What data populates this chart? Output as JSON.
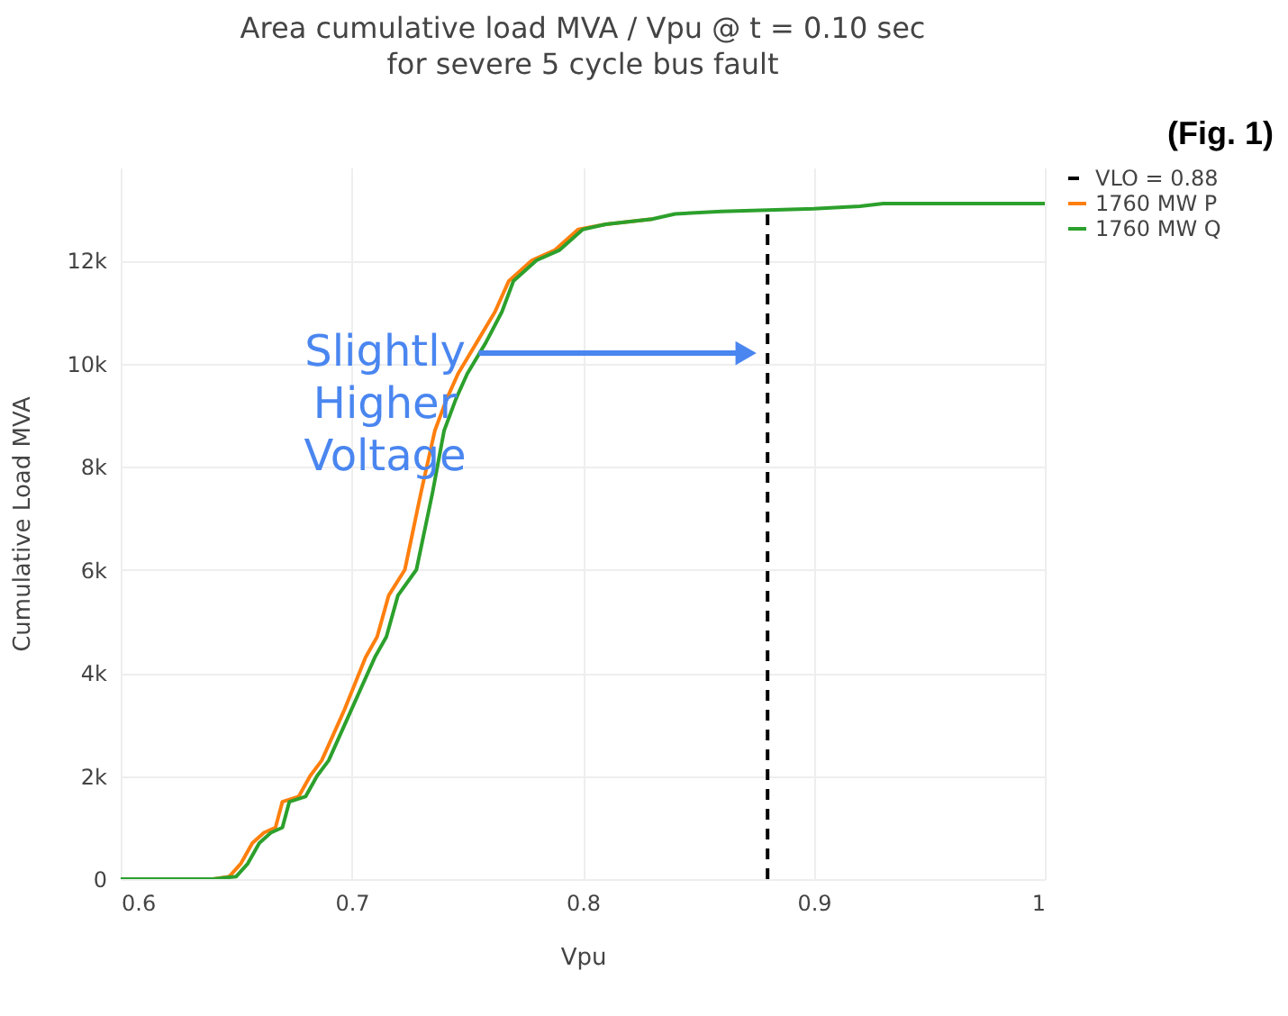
{
  "chart_data": {
    "type": "line",
    "title": "Area cumulative load MVA / Vpu @ t = 0.10 sec",
    "subtitle": "for severe 5 cycle bus fault",
    "xlabel": "Vpu",
    "ylabel": "Cumulative Load MVA",
    "annotations": [
      {
        "text": "Slightly Higher Voltage",
        "x": 0.755,
        "y": 10200
      },
      "(Fig. 1)"
    ],
    "xlim": [
      0.6,
      1.0
    ],
    "xticks": [
      0.6,
      0.7,
      0.8,
      0.9,
      1
    ],
    "ylim": [
      0,
      13800
    ],
    "yticks": [
      0,
      {
        "value": 2000,
        "label": "2k"
      },
      {
        "value": 4000,
        "label": "4k"
      },
      {
        "value": 6000,
        "label": "6k"
      },
      {
        "value": 8000,
        "label": "8k"
      },
      {
        "value": 10000,
        "label": "10k"
      },
      {
        "value": 12000,
        "label": "12k"
      }
    ],
    "grid": true,
    "legend": "top right",
    "marker": "none",
    "series": [
      {
        "name": "VLO = 0.88",
        "color": "#000000",
        "line_style": "dashed",
        "x": [
          0.88,
          0.88
        ],
        "values": [
          0,
          12950
        ]
      },
      {
        "name": "1760 MW P",
        "color": "#ff7f0e",
        "line_style": "solid",
        "x": [
          0.6,
          0.64,
          0.647,
          0.652,
          0.657,
          0.662,
          0.667,
          0.67,
          0.677,
          0.682,
          0.687,
          0.697,
          0.706,
          0.711,
          0.716,
          0.723,
          0.73,
          0.736,
          0.741,
          0.746,
          0.754,
          0.762,
          0.768,
          0.778,
          0.788,
          0.798,
          0.81,
          0.83
        ],
        "values": [
          0,
          0,
          50,
          300,
          700,
          900,
          1000,
          1500,
          1600,
          2000,
          2300,
          3300,
          4300,
          4700,
          5500,
          6000,
          7500,
          8700,
          9300,
          9800,
          10400,
          11000,
          11600,
          12000,
          12200,
          12600,
          12700,
          12800
        ]
      },
      {
        "name": "1760 MW Q",
        "color": "#2ca02c",
        "line_style": "solid",
        "x": [
          0.6,
          0.64,
          0.65,
          0.655,
          0.66,
          0.665,
          0.67,
          0.673,
          0.68,
          0.685,
          0.69,
          0.7,
          0.71,
          0.715,
          0.72,
          0.728,
          0.735,
          0.74,
          0.745,
          0.75,
          0.758,
          0.765,
          0.77,
          0.78,
          0.79,
          0.8,
          0.81,
          0.83,
          0.84,
          0.86,
          0.9,
          0.92,
          0.93,
          1.0
        ],
        "values": [
          0,
          0,
          50,
          300,
          700,
          900,
          1000,
          1500,
          1600,
          2000,
          2300,
          3300,
          4300,
          4700,
          5500,
          6000,
          7500,
          8700,
          9300,
          9800,
          10400,
          11000,
          11600,
          12000,
          12200,
          12600,
          12700,
          12800,
          12900,
          12950,
          13000,
          13050,
          13100,
          13100
        ]
      }
    ]
  }
}
